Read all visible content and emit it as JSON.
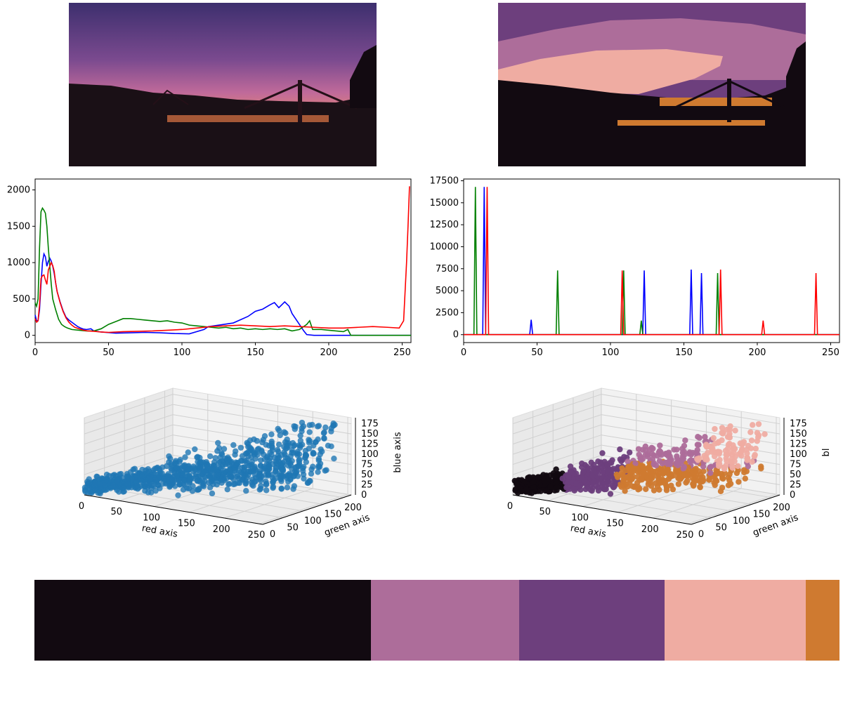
{
  "chart_data": [
    {
      "type": "line",
      "title": "",
      "xlabel": "",
      "ylabel": "",
      "xlim": [
        0,
        256
      ],
      "ylim": [
        -100,
        2150
      ],
      "xticks": [
        0,
        50,
        100,
        150,
        200,
        250
      ],
      "yticks": [
        0,
        500,
        1000,
        1500,
        2000
      ],
      "grid": false,
      "series": [
        {
          "color": "#0000ff",
          "points": [
            [
              0,
              280
            ],
            [
              1,
              200
            ],
            [
              2,
              200
            ],
            [
              3,
              350
            ],
            [
              4,
              700
            ],
            [
              5,
              1000
            ],
            [
              6,
              1120
            ],
            [
              7,
              1080
            ],
            [
              8,
              950
            ],
            [
              9,
              1020
            ],
            [
              10,
              1060
            ],
            [
              11,
              1020
            ],
            [
              12,
              950
            ],
            [
              13,
              850
            ],
            [
              14,
              720
            ],
            [
              15,
              600
            ],
            [
              17,
              460
            ],
            [
              19,
              340
            ],
            [
              21,
              250
            ],
            [
              23,
              210
            ],
            [
              25,
              180
            ],
            [
              27,
              150
            ],
            [
              29,
              120
            ],
            [
              31,
              100
            ],
            [
              33,
              85
            ],
            [
              35,
              80
            ],
            [
              38,
              90
            ],
            [
              40,
              60
            ],
            [
              45,
              45
            ],
            [
              55,
              30
            ],
            [
              65,
              35
            ],
            [
              75,
              40
            ],
            [
              85,
              35
            ],
            [
              95,
              25
            ],
            [
              105,
              20
            ],
            [
              115,
              80
            ],
            [
              118,
              120
            ],
            [
              125,
              140
            ],
            [
              135,
              170
            ],
            [
              145,
              260
            ],
            [
              150,
              330
            ],
            [
              155,
              360
            ],
            [
              160,
              420
            ],
            [
              163,
              450
            ],
            [
              166,
              380
            ],
            [
              170,
              460
            ],
            [
              173,
              400
            ],
            [
              175,
              300
            ],
            [
              180,
              150
            ],
            [
              183,
              60
            ],
            [
              185,
              10
            ],
            [
              190,
              0
            ],
            [
              215,
              0
            ],
            [
              256,
              0
            ]
          ]
        },
        {
          "color": "#008000",
          "points": [
            [
              0,
              450
            ],
            [
              1,
              400
            ],
            [
              2,
              500
            ],
            [
              3,
              1200
            ],
            [
              4,
              1700
            ],
            [
              5,
              1750
            ],
            [
              6,
              1720
            ],
            [
              7,
              1680
            ],
            [
              8,
              1500
            ],
            [
              9,
              1200
            ],
            [
              10,
              950
            ],
            [
              11,
              700
            ],
            [
              12,
              500
            ],
            [
              14,
              350
            ],
            [
              16,
              220
            ],
            [
              18,
              150
            ],
            [
              20,
              120
            ],
            [
              22,
              100
            ],
            [
              25,
              80
            ],
            [
              30,
              70
            ],
            [
              35,
              60
            ],
            [
              40,
              60
            ],
            [
              45,
              90
            ],
            [
              50,
              150
            ],
            [
              55,
              190
            ],
            [
              60,
              230
            ],
            [
              65,
              230
            ],
            [
              70,
              220
            ],
            [
              75,
              210
            ],
            [
              80,
              200
            ],
            [
              85,
              190
            ],
            [
              90,
              200
            ],
            [
              95,
              180
            ],
            [
              100,
              170
            ],
            [
              105,
              140
            ],
            [
              110,
              130
            ],
            [
              115,
              120
            ],
            [
              120,
              110
            ],
            [
              125,
              100
            ],
            [
              130,
              110
            ],
            [
              135,
              90
            ],
            [
              140,
              100
            ],
            [
              145,
              80
            ],
            [
              150,
              90
            ],
            [
              155,
              80
            ],
            [
              160,
              90
            ],
            [
              165,
              80
            ],
            [
              170,
              90
            ],
            [
              175,
              60
            ],
            [
              180,
              80
            ],
            [
              185,
              150
            ],
            [
              187,
              200
            ],
            [
              189,
              80
            ],
            [
              195,
              80
            ],
            [
              200,
              70
            ],
            [
              205,
              60
            ],
            [
              210,
              50
            ],
            [
              213,
              80
            ],
            [
              215,
              0
            ],
            [
              256,
              0
            ]
          ]
        },
        {
          "color": "#ff0000",
          "points": [
            [
              0,
              230
            ],
            [
              1,
              180
            ],
            [
              2,
              200
            ],
            [
              3,
              420
            ],
            [
              4,
              780
            ],
            [
              5,
              820
            ],
            [
              6,
              830
            ],
            [
              7,
              760
            ],
            [
              8,
              700
            ],
            [
              9,
              900
            ],
            [
              10,
              950
            ],
            [
              11,
              1000
            ],
            [
              12,
              960
            ],
            [
              13,
              880
            ],
            [
              14,
              720
            ],
            [
              15,
              600
            ],
            [
              17,
              450
            ],
            [
              19,
              330
            ],
            [
              21,
              240
            ],
            [
              23,
              180
            ],
            [
              25,
              140
            ],
            [
              27,
              110
            ],
            [
              30,
              90
            ],
            [
              33,
              70
            ],
            [
              36,
              60
            ],
            [
              40,
              55
            ],
            [
              45,
              45
            ],
            [
              50,
              40
            ],
            [
              60,
              50
            ],
            [
              70,
              55
            ],
            [
              80,
              60
            ],
            [
              90,
              70
            ],
            [
              100,
              80
            ],
            [
              110,
              100
            ],
            [
              120,
              120
            ],
            [
              130,
              130
            ],
            [
              140,
              140
            ],
            [
              150,
              130
            ],
            [
              160,
              120
            ],
            [
              170,
              130
            ],
            [
              180,
              120
            ],
            [
              190,
              110
            ],
            [
              200,
              100
            ],
            [
              210,
              100
            ],
            [
              220,
              110
            ],
            [
              230,
              120
            ],
            [
              240,
              110
            ],
            [
              248,
              100
            ],
            [
              251,
              200
            ],
            [
              252,
              600
            ],
            [
              253,
              1000
            ],
            [
              254,
              1500
            ],
            [
              255,
              2050
            ]
          ]
        }
      ]
    },
    {
      "type": "line",
      "title": "",
      "xlabel": "",
      "ylabel": "",
      "xlim": [
        0,
        256
      ],
      "ylim": [
        -900,
        17700
      ],
      "xticks": [
        0,
        50,
        100,
        150,
        200,
        250
      ],
      "yticks": [
        0,
        2500,
        5000,
        7500,
        10000,
        12500,
        15000,
        17500
      ],
      "grid": false,
      "series": [
        {
          "color": "#0000ff",
          "spikes": [
            [
              14,
              16800
            ],
            [
              46,
              1700
            ],
            [
              123,
              7300
            ],
            [
              155,
              7400
            ],
            [
              162,
              7000
            ]
          ]
        },
        {
          "color": "#008000",
          "spikes": [
            [
              8,
              16800
            ],
            [
              64,
              7300
            ],
            [
              109,
              7300
            ],
            [
              121,
              1600
            ],
            [
              173,
              7000
            ]
          ]
        },
        {
          "color": "#ff0000",
          "spikes": [
            [
              16,
              16800
            ],
            [
              108,
              7300
            ],
            [
              175,
              7400
            ],
            [
              204,
              1600
            ],
            [
              240,
              7000
            ]
          ]
        }
      ]
    },
    {
      "type": "scatter",
      "title": "",
      "xlabel": "red axis",
      "ylabel": "green axis",
      "zlabel": "blue axis",
      "xticks": [
        0,
        50,
        100,
        150,
        200,
        250
      ],
      "yticks": [
        0,
        50,
        100,
        150,
        200
      ],
      "zticks": [
        0,
        25,
        50,
        75,
        100,
        125,
        150,
        175
      ],
      "xlim": [
        0,
        255
      ],
      "ylim": [
        0,
        220
      ],
      "zlim": [
        0,
        190
      ],
      "point_color": "#1f77b4"
    },
    {
      "type": "scatter",
      "title": "",
      "xlabel": "red axis",
      "ylabel": "green axis",
      "zlabel": "bl",
      "xticks": [
        0,
        50,
        100,
        150,
        200,
        250
      ],
      "yticks": [
        0,
        50,
        100,
        150,
        200
      ],
      "zticks": [
        0,
        25,
        50,
        75,
        100,
        125,
        150,
        175
      ],
      "xlim": [
        0,
        255
      ],
      "ylim": [
        0,
        220
      ],
      "zlim": [
        0,
        190
      ],
      "cluster_colors": [
        "#120a11",
        "#6d3f7d",
        "#ad6d9a",
        "#efaca2",
        "#cf7a30"
      ]
    },
    {
      "type": "bar",
      "title": "",
      "palette": [
        {
          "color": "#120a11",
          "fraction": 0.418
        },
        {
          "color": "#ad6d9a",
          "fraction": 0.184
        },
        {
          "color": "#6d3f7d",
          "fraction": 0.181
        },
        {
          "color": "#efaca2",
          "fraction": 0.175
        },
        {
          "color": "#cf7a30",
          "fraction": 0.042
        }
      ]
    }
  ],
  "images": {
    "original": {
      "sky_top": "#3d2f6e",
      "sky_mid": "#b85a9a",
      "glow": "#f5a020",
      "ground": "#1a1016"
    },
    "quantized": {
      "colors": [
        "#6d3f7d",
        "#ad6d9a",
        "#efaca2",
        "#cf7a30",
        "#120a11"
      ]
    }
  }
}
